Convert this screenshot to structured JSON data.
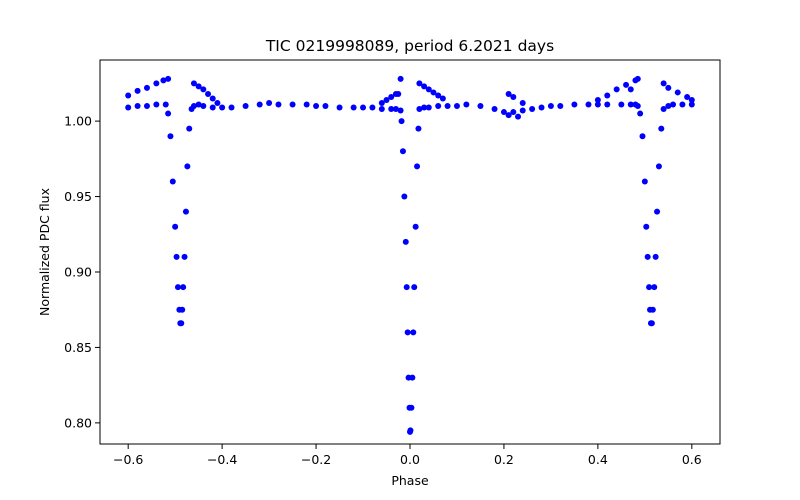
{
  "chart_data": {
    "type": "scatter",
    "title": "TIC 0219998089, period 6.2021 days",
    "xlabel": "Phase",
    "ylabel": "Normalized PDC flux",
    "xlim": [
      -0.66,
      0.66
    ],
    "ylim": [
      0.786,
      1.0405
    ],
    "xticks": [
      -0.6,
      -0.4,
      -0.2,
      0.0,
      0.2,
      0.4,
      0.6
    ],
    "xtick_labels": [
      "−0.6",
      "−0.4",
      "−0.2",
      "0.0",
      "0.2",
      "0.4",
      "0.6"
    ],
    "yticks": [
      0.8,
      0.85,
      0.9,
      0.95,
      1.0
    ],
    "ytick_labels": [
      "0.80",
      "0.85",
      "0.90",
      "0.95",
      "1.00"
    ],
    "grid": false,
    "series": [
      {
        "name": "PDC flux",
        "color": "#0000ff",
        "marker": "o",
        "x": [
          -0.6,
          -0.58,
          -0.56,
          -0.54,
          -0.52,
          -0.515,
          -0.51,
          -0.505,
          -0.5,
          -0.497,
          -0.494,
          -0.491,
          -0.489,
          -0.487,
          -0.485,
          -0.483,
          -0.48,
          -0.477,
          -0.474,
          -0.47,
          -0.465,
          -0.46,
          -0.45,
          -0.44,
          -0.42,
          -0.4,
          -0.38,
          -0.35,
          -0.32,
          -0.3,
          -0.28,
          -0.25,
          -0.22,
          -0.2,
          -0.18,
          -0.15,
          -0.12,
          -0.1,
          -0.08,
          -0.06,
          -0.04,
          -0.03,
          -0.02,
          -0.018,
          -0.015,
          -0.012,
          -0.009,
          -0.007,
          -0.005,
          -0.003,
          -0.001,
          0.0,
          0.001,
          0.003,
          0.005,
          0.007,
          0.009,
          0.012,
          0.015,
          0.018,
          0.02,
          0.03,
          0.04,
          0.06,
          0.08,
          0.1,
          0.12,
          0.15,
          0.18,
          0.2,
          0.21,
          0.22,
          0.24,
          0.26,
          0.28,
          0.3,
          0.32,
          0.35,
          0.38,
          0.4,
          0.42,
          0.45,
          0.47,
          0.48,
          0.485,
          0.49,
          0.495,
          0.5,
          0.503,
          0.506,
          0.509,
          0.511,
          0.513,
          0.515,
          0.517,
          0.52,
          0.523,
          0.526,
          0.53,
          0.535,
          0.54,
          0.55,
          0.56,
          0.58,
          0.6,
          -0.6,
          -0.58,
          -0.56,
          -0.54,
          -0.525,
          -0.515,
          -0.46,
          -0.45,
          -0.44,
          -0.43,
          -0.42,
          -0.41,
          -0.06,
          -0.05,
          -0.04,
          -0.03,
          -0.025,
          -0.02,
          0.02,
          0.03,
          0.04,
          0.05,
          0.06,
          0.07,
          0.47,
          0.48,
          0.485,
          0.54,
          0.55,
          0.57,
          0.59,
          0.6,
          0.4,
          0.42,
          0.44,
          0.46,
          0.22,
          0.24,
          0.23,
          0.21
        ],
        "y": [
          1.009,
          1.01,
          1.01,
          1.011,
          1.011,
          1.005,
          0.99,
          0.96,
          0.93,
          0.91,
          0.89,
          0.875,
          0.866,
          0.866,
          0.875,
          0.89,
          0.91,
          0.94,
          0.97,
          0.995,
          1.008,
          1.01,
          1.011,
          1.01,
          1.009,
          1.009,
          1.009,
          1.01,
          1.011,
          1.012,
          1.011,
          1.011,
          1.011,
          1.01,
          1.01,
          1.009,
          1.009,
          1.009,
          1.009,
          1.008,
          1.008,
          1.008,
          1.007,
          1.0,
          0.98,
          0.95,
          0.92,
          0.89,
          0.86,
          0.83,
          0.81,
          0.794,
          0.795,
          0.81,
          0.83,
          0.86,
          0.89,
          0.93,
          0.97,
          0.995,
          1.008,
          1.009,
          1.009,
          1.01,
          1.01,
          1.01,
          1.011,
          1.01,
          1.008,
          1.006,
          1.004,
          1.006,
          1.007,
          1.008,
          1.009,
          1.01,
          1.01,
          1.011,
          1.011,
          1.011,
          1.011,
          1.011,
          1.011,
          1.011,
          1.01,
          1.005,
          0.99,
          0.96,
          0.93,
          0.91,
          0.89,
          0.875,
          0.866,
          0.866,
          0.875,
          0.89,
          0.91,
          0.94,
          0.97,
          0.995,
          1.008,
          1.01,
          1.011,
          1.011,
          1.011,
          1.017,
          1.02,
          1.022,
          1.025,
          1.027,
          1.028,
          1.025,
          1.023,
          1.021,
          1.018,
          1.015,
          1.012,
          1.012,
          1.014,
          1.016,
          1.018,
          1.018,
          1.028,
          1.025,
          1.023,
          1.021,
          1.019,
          1.017,
          1.015,
          1.021,
          1.027,
          1.028,
          1.025,
          1.022,
          1.019,
          1.016,
          1.014,
          1.014,
          1.017,
          1.021,
          1.024,
          1.016,
          1.012,
          1.003,
          1.018
        ]
      }
    ]
  }
}
